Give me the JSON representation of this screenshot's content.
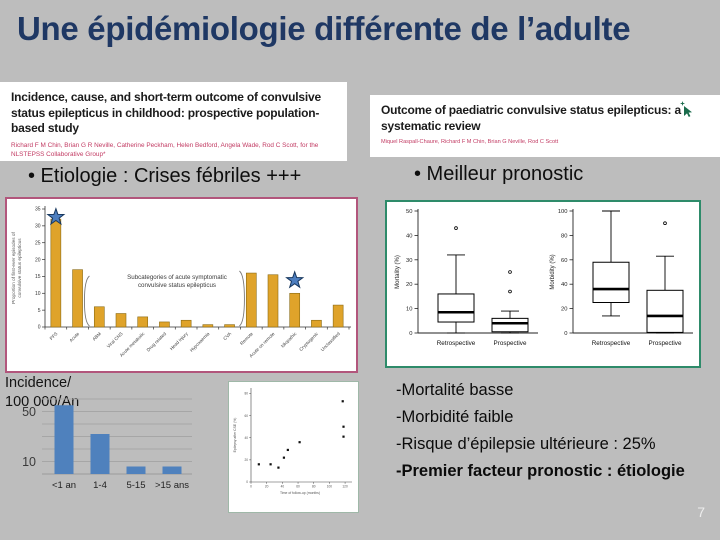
{
  "slide": {
    "title": "Une épidémiologie différente de l’adulte",
    "page_number": "7",
    "colors": {
      "background": "#bdbdbd",
      "title_color": "#1f3864",
      "etiology_panel_border": "#b2567c",
      "boxplot_panel_border": "#2e8b6a",
      "authors_red": "#c23b63",
      "star_blue": "#4d7ebf",
      "cursor_green": "#1a6b4b"
    }
  },
  "papers": [
    {
      "title": "Incidence, cause, and short-term outcome of convulsive status epilepticus in childhood: prospective population-based study",
      "authors": "Richard F M Chin, Brian G R Neville, Catherine Peckham, Helen Bedford, Angela Wade, Rod C Scott, for the NLSTEPSS Collaborative Group*"
    },
    {
      "title": "Outcome of paediatric convulsive status epilepticus: a systematic review",
      "authors": "Miquel Raspall-Chaure, Richard F M Chin, Brian G Neville, Rod C Scott"
    }
  ],
  "bullets": {
    "left": "• Etiologie : Crises fébriles +++",
    "right": "• Meilleur pronostic"
  },
  "incidence_label": "Incidence/\n100 000/An",
  "notes": [
    {
      "text": "-Mortalité basse",
      "bold": false
    },
    {
      "text": "-Morbidité faible",
      "bold": false
    },
    {
      "text": "-Risque d’épilepsie ultérieure : 25%",
      "bold": false
    },
    {
      "text": "-Premier facteur pronostic : étiologie",
      "bold": true
    }
  ],
  "chart_data": [
    {
      "id": "etiology",
      "type": "bar",
      "ylabel": "Proportion of first-ever episodes of convulsive status epilepticus",
      "ylim": [
        0,
        35
      ],
      "yticks": [
        0,
        5,
        10,
        15,
        20,
        25,
        30,
        35
      ],
      "categories": [
        "PFS",
        "Acute",
        "ABM",
        "Viral CNS",
        "Acute metabolic",
        "Drug related",
        "Head injury",
        "Hypoxaemia",
        "CVA",
        "Remote",
        "Acute on remote",
        "Idiopathic",
        "Cryptogenic",
        "Unclassified"
      ],
      "values": [
        32,
        17,
        6,
        4,
        3,
        1.5,
        2,
        0.7,
        0.7,
        16,
        15.5,
        10,
        2,
        6.5
      ],
      "bar_color": "#dfa32a",
      "annotation": "Subcategories of acute symptomatic convulsive status epilepticus",
      "annotation_span": [
        2,
        8
      ],
      "star_marker_color": "#4d7ebf",
      "stars_at": [
        0,
        11
      ]
    },
    {
      "id": "mortality",
      "type": "boxplot",
      "ylabel": "Mortality (%)",
      "ylim": [
        0,
        50
      ],
      "yticks": [
        0,
        10,
        20,
        30,
        40,
        50
      ],
      "categories": [
        "Retrospective",
        "Prospective"
      ],
      "boxes": [
        {
          "whisker_low": 0,
          "q1": 4.5,
          "median": 8.5,
          "q3": 16,
          "whisker_high": 32,
          "outliers": [
            43
          ]
        },
        {
          "whisker_low": 0,
          "q1": 0.5,
          "median": 4,
          "q3": 6,
          "whisker_high": 9,
          "outliers": [
            17,
            25
          ]
        }
      ]
    },
    {
      "id": "morbidity",
      "type": "boxplot",
      "ylabel": "Morbidity (%)",
      "ylim": [
        0,
        100
      ],
      "yticks": [
        0,
        20,
        40,
        60,
        80,
        100
      ],
      "categories": [
        "Retrospective",
        "Prospective"
      ],
      "boxes": [
        {
          "whisker_low": 14,
          "q1": 25,
          "median": 36,
          "q3": 58,
          "whisker_high": 100,
          "outliers": []
        },
        {
          "whisker_low": 0,
          "q1": 0.5,
          "median": 14,
          "q3": 35,
          "whisker_high": 63,
          "outliers": [
            90
          ]
        }
      ]
    },
    {
      "id": "incidence",
      "type": "bar",
      "title": "Incidence/100 000/An",
      "categories": [
        "<1 an",
        "1-4",
        "5-15",
        ">15 ans"
      ],
      "values": [
        55,
        32,
        6,
        6
      ],
      "ylim": [
        0,
        60
      ],
      "gridlines": [
        10,
        20,
        30,
        40,
        50,
        60
      ],
      "ytick_labels": [
        50,
        10
      ],
      "bar_color": "#4f81bd"
    },
    {
      "id": "epilepsy_scatter",
      "type": "scatter",
      "xlabel": "Time of follow-up (months)",
      "ylabel": "Epilepsy after CSE (%)",
      "xlim": [
        0,
        125
      ],
      "ylim": [
        0,
        85
      ],
      "xticks": [
        0,
        20,
        40,
        60,
        80,
        100,
        120
      ],
      "yticks": [
        0,
        20,
        40,
        60,
        80
      ],
      "points": [
        [
          10,
          16
        ],
        [
          25,
          16
        ],
        [
          35,
          13
        ],
        [
          42,
          22
        ],
        [
          47,
          29
        ],
        [
          62,
          36
        ],
        [
          117,
          73
        ],
        [
          118,
          50
        ],
        [
          118,
          41
        ]
      ]
    }
  ]
}
